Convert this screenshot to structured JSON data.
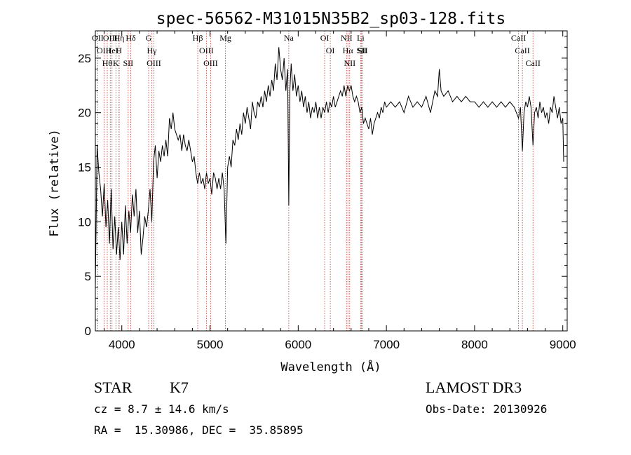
{
  "chart_data": {
    "type": "line",
    "title": "spec-56562-M31015N35B2_sp03-128.fits",
    "xlabel": "Wavelength (Å)",
    "ylabel": "Flux (relative)",
    "xlim": [
      3700,
      9050
    ],
    "ylim": [
      0,
      27.5
    ],
    "xticks": [
      4000,
      5000,
      6000,
      7000,
      8000,
      9000
    ],
    "yticks": [
      0,
      5,
      10,
      15,
      20,
      25
    ],
    "grid": false,
    "series": [
      {
        "points": [
          [
            3700,
            4.0
          ],
          [
            3720,
            17.0
          ],
          [
            3740,
            14.5
          ],
          [
            3760,
            13.0
          ],
          [
            3780,
            10.5
          ],
          [
            3800,
            13.5
          ],
          [
            3820,
            9.5
          ],
          [
            3840,
            12.0
          ],
          [
            3860,
            8.0
          ],
          [
            3880,
            13.0
          ],
          [
            3900,
            7.5
          ],
          [
            3920,
            10.5
          ],
          [
            3940,
            7.0
          ],
          [
            3960,
            9.5
          ],
          [
            3980,
            6.5
          ],
          [
            4000,
            10.0
          ],
          [
            4020,
            7.0
          ],
          [
            4040,
            11.5
          ],
          [
            4060,
            8.0
          ],
          [
            4080,
            11.0
          ],
          [
            4100,
            9.0
          ],
          [
            4120,
            12.5
          ],
          [
            4140,
            10.5
          ],
          [
            4160,
            13.0
          ],
          [
            4180,
            9.0
          ],
          [
            4200,
            11.0
          ],
          [
            4220,
            7.0
          ],
          [
            4240,
            8.5
          ],
          [
            4260,
            10.5
          ],
          [
            4280,
            9.5
          ],
          [
            4300,
            11.0
          ],
          [
            4320,
            13.0
          ],
          [
            4340,
            10.0
          ],
          [
            4360,
            15.5
          ],
          [
            4380,
            17.0
          ],
          [
            4400,
            14.0
          ],
          [
            4420,
            16.5
          ],
          [
            4440,
            15.5
          ],
          [
            4460,
            17.0
          ],
          [
            4480,
            16.0
          ],
          [
            4500,
            17.5
          ],
          [
            4520,
            16.0
          ],
          [
            4540,
            19.5
          ],
          [
            4560,
            18.5
          ],
          [
            4580,
            20.0
          ],
          [
            4600,
            18.5
          ],
          [
            4620,
            18.0
          ],
          [
            4640,
            17.5
          ],
          [
            4660,
            18.0
          ],
          [
            4680,
            16.5
          ],
          [
            4700,
            18.0
          ],
          [
            4720,
            17.0
          ],
          [
            4740,
            16.5
          ],
          [
            4760,
            17.5
          ],
          [
            4780,
            16.5
          ],
          [
            4800,
            15.5
          ],
          [
            4820,
            16.0
          ],
          [
            4840,
            14.5
          ],
          [
            4860,
            13.5
          ],
          [
            4880,
            14.5
          ],
          [
            4900,
            13.5
          ],
          [
            4920,
            14.0
          ],
          [
            4940,
            13.0
          ],
          [
            4960,
            14.5
          ],
          [
            4980,
            13.5
          ],
          [
            5000,
            14.0
          ],
          [
            5020,
            12.5
          ],
          [
            5040,
            14.5
          ],
          [
            5060,
            14.0
          ],
          [
            5080,
            13.0
          ],
          [
            5100,
            14.0
          ],
          [
            5120,
            13.0
          ],
          [
            5140,
            14.5
          ],
          [
            5160,
            13.0
          ],
          [
            5180,
            8.0
          ],
          [
            5200,
            15.0
          ],
          [
            5220,
            16.0
          ],
          [
            5240,
            15.0
          ],
          [
            5260,
            17.5
          ],
          [
            5280,
            17.0
          ],
          [
            5300,
            18.5
          ],
          [
            5320,
            17.5
          ],
          [
            5340,
            19.0
          ],
          [
            5360,
            18.0
          ],
          [
            5380,
            20.0
          ],
          [
            5400,
            19.0
          ],
          [
            5420,
            20.5
          ],
          [
            5440,
            19.5
          ],
          [
            5460,
            18.5
          ],
          [
            5480,
            21.0
          ],
          [
            5500,
            20.0
          ],
          [
            5520,
            19.5
          ],
          [
            5540,
            21.0
          ],
          [
            5560,
            20.5
          ],
          [
            5580,
            21.5
          ],
          [
            5600,
            20.5
          ],
          [
            5620,
            22.0
          ],
          [
            5640,
            21.0
          ],
          [
            5660,
            22.5
          ],
          [
            5680,
            21.5
          ],
          [
            5700,
            23.0
          ],
          [
            5720,
            22.0
          ],
          [
            5740,
            24.5
          ],
          [
            5760,
            23.0
          ],
          [
            5780,
            26.0
          ],
          [
            5800,
            24.0
          ],
          [
            5820,
            23.0
          ],
          [
            5840,
            25.0
          ],
          [
            5860,
            22.0
          ],
          [
            5880,
            24.0
          ],
          [
            5893,
            11.5
          ],
          [
            5905,
            22.0
          ],
          [
            5920,
            24.5
          ],
          [
            5940,
            22.0
          ],
          [
            5960,
            23.5
          ],
          [
            5980,
            21.5
          ],
          [
            6000,
            22.5
          ],
          [
            6020,
            21.0
          ],
          [
            6040,
            22.0
          ],
          [
            6060,
            20.5
          ],
          [
            6080,
            21.5
          ],
          [
            6100,
            20.0
          ],
          [
            6120,
            21.0
          ],
          [
            6140,
            19.5
          ],
          [
            6160,
            20.5
          ],
          [
            6180,
            20.0
          ],
          [
            6200,
            21.0
          ],
          [
            6220,
            19.5
          ],
          [
            6240,
            20.5
          ],
          [
            6260,
            19.5
          ],
          [
            6280,
            20.5
          ],
          [
            6300,
            20.0
          ],
          [
            6320,
            21.0
          ],
          [
            6340,
            20.0
          ],
          [
            6360,
            21.0
          ],
          [
            6380,
            20.5
          ],
          [
            6400,
            21.5
          ],
          [
            6420,
            20.5
          ],
          [
            6440,
            21.0
          ],
          [
            6460,
            21.5
          ],
          [
            6480,
            22.0
          ],
          [
            6500,
            21.5
          ],
          [
            6520,
            22.5
          ],
          [
            6540,
            21.5
          ],
          [
            6562,
            22.5
          ],
          [
            6580,
            22.0
          ],
          [
            6600,
            22.5
          ],
          [
            6620,
            21.5
          ],
          [
            6640,
            21.0
          ],
          [
            6660,
            21.5
          ],
          [
            6680,
            21.0
          ],
          [
            6700,
            20.0
          ],
          [
            6720,
            20.5
          ],
          [
            6740,
            19.0
          ],
          [
            6760,
            19.5
          ],
          [
            6780,
            19.0
          ],
          [
            6800,
            18.5
          ],
          [
            6820,
            19.5
          ],
          [
            6840,
            18.0
          ],
          [
            6860,
            19.0
          ],
          [
            6880,
            19.5
          ],
          [
            6900,
            20.0
          ],
          [
            6920,
            19.5
          ],
          [
            6940,
            20.5
          ],
          [
            6960,
            20.0
          ],
          [
            6980,
            21.0
          ],
          [
            7000,
            20.5
          ],
          [
            7050,
            21.0
          ],
          [
            7100,
            20.5
          ],
          [
            7150,
            21.0
          ],
          [
            7200,
            20.0
          ],
          [
            7250,
            21.5
          ],
          [
            7300,
            20.5
          ],
          [
            7350,
            21.0
          ],
          [
            7400,
            20.5
          ],
          [
            7450,
            21.5
          ],
          [
            7500,
            20.0
          ],
          [
            7550,
            22.0
          ],
          [
            7580,
            21.5
          ],
          [
            7600,
            24.0
          ],
          [
            7620,
            22.0
          ],
          [
            7650,
            21.5
          ],
          [
            7700,
            22.0
          ],
          [
            7750,
            21.0
          ],
          [
            7800,
            21.5
          ],
          [
            7850,
            21.0
          ],
          [
            7900,
            21.5
          ],
          [
            7950,
            21.0
          ],
          [
            8000,
            21.0
          ],
          [
            8050,
            20.5
          ],
          [
            8100,
            21.0
          ],
          [
            8150,
            20.5
          ],
          [
            8200,
            21.0
          ],
          [
            8250,
            20.5
          ],
          [
            8300,
            21.0
          ],
          [
            8350,
            20.5
          ],
          [
            8400,
            21.0
          ],
          [
            8450,
            20.5
          ],
          [
            8498,
            19.5
          ],
          [
            8520,
            20.5
          ],
          [
            8542,
            16.5
          ],
          [
            8560,
            20.0
          ],
          [
            8580,
            21.0
          ],
          [
            8600,
            20.5
          ],
          [
            8620,
            21.5
          ],
          [
            8640,
            20.5
          ],
          [
            8662,
            17.0
          ],
          [
            8680,
            20.0
          ],
          [
            8700,
            20.5
          ],
          [
            8720,
            19.5
          ],
          [
            8740,
            21.0
          ],
          [
            8760,
            20.0
          ],
          [
            8780,
            20.5
          ],
          [
            8800,
            19.5
          ],
          [
            8820,
            20.0
          ],
          [
            8840,
            19.0
          ],
          [
            8860,
            20.5
          ],
          [
            8880,
            20.0
          ],
          [
            8900,
            21.5
          ],
          [
            8920,
            20.5
          ],
          [
            8940,
            19.5
          ],
          [
            8960,
            20.5
          ],
          [
            8980,
            19.0
          ],
          [
            9000,
            19.5
          ],
          [
            9010,
            15.5
          ]
        ]
      }
    ],
    "line_markers": [
      {
        "wavelength": 3727,
        "labels": [
          "OII"
        ]
      },
      {
        "wavelength": 3798,
        "labels": [
          "OIII"
        ]
      },
      {
        "wavelength": 3835,
        "labels": [
          "Hθ"
        ]
      },
      {
        "wavelength": 3869,
        "labels": [
          "OIII"
        ]
      },
      {
        "wavelength": 3889,
        "labels": [
          "HeI"
        ]
      },
      {
        "wavelength": 3933,
        "labels": [
          "K"
        ]
      },
      {
        "wavelength": 3970,
        "labels": [
          "Hη"
        ]
      },
      {
        "wavelength": 3968,
        "labels": [
          "H"
        ]
      },
      {
        "wavelength": 4072,
        "labels": [
          "SII"
        ]
      },
      {
        "wavelength": 4102,
        "labels": [
          "Hδ"
        ]
      },
      {
        "wavelength": 4304,
        "labels": [
          "G"
        ]
      },
      {
        "wavelength": 4340,
        "labels": [
          "Hγ"
        ]
      },
      {
        "wavelength": 4363,
        "labels": [
          "OIII"
        ]
      },
      {
        "wavelength": 4861,
        "labels": [
          "Hβ"
        ]
      },
      {
        "wavelength": 4959,
        "labels": [
          "OIII"
        ]
      },
      {
        "wavelength": 5007,
        "labels": [
          "OIII"
        ]
      },
      {
        "wavelength": 5175,
        "labels": [
          "Mg"
        ]
      },
      {
        "wavelength": 5893,
        "labels": [
          "Na"
        ]
      },
      {
        "wavelength": 6300,
        "labels": [
          "OI"
        ]
      },
      {
        "wavelength": 6364,
        "labels": [
          "OI"
        ]
      },
      {
        "wavelength": 6548,
        "labels": [
          "NII"
        ]
      },
      {
        "wavelength": 6563,
        "labels": [
          "Hα"
        ]
      },
      {
        "wavelength": 6584,
        "labels": [
          "NII"
        ]
      },
      {
        "wavelength": 6708,
        "labels": [
          "Li"
        ]
      },
      {
        "wavelength": 6717,
        "labels": [
          "SII"
        ]
      },
      {
        "wavelength": 6731,
        "labels": [
          "SII"
        ]
      },
      {
        "wavelength": 8498,
        "labels": [
          "CaII"
        ]
      },
      {
        "wavelength": 8542,
        "labels": [
          "CaII"
        ]
      },
      {
        "wavelength": 8662,
        "labels": [
          "CaII"
        ]
      }
    ],
    "colors": {
      "line": "#000000",
      "marker": "#c8322d"
    }
  },
  "info": {
    "class": "STAR",
    "subclass": "K7",
    "survey": "LAMOST DR3",
    "cz": "cz = 8.7 ± 14.6 km/s",
    "obs_date": "Obs-Date: 20130926",
    "radec": "RA =  15.30986, DEC =  35.85895"
  }
}
